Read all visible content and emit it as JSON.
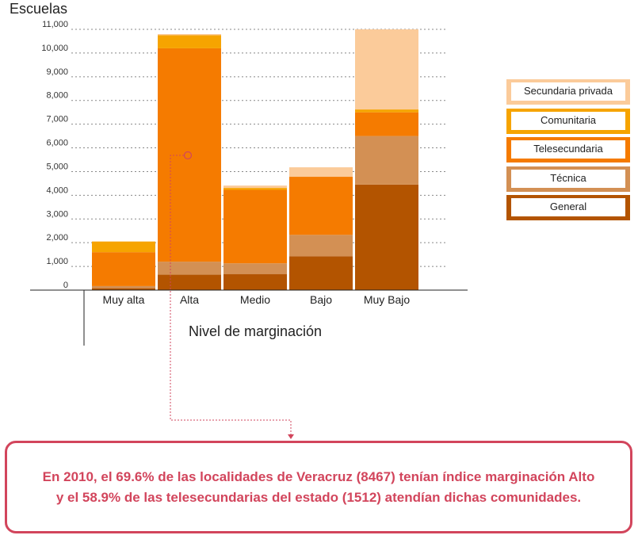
{
  "chart_data": {
    "type": "bar",
    "stacked": true,
    "ylabel": "Escuelas",
    "xlabel": "Nivel de marginación",
    "categories": [
      "Muy alta",
      "Alta",
      "Medio",
      "Bajo",
      "Muy Bajo"
    ],
    "ylim": [
      0,
      11000
    ],
    "yticks": [
      0,
      1000,
      2000,
      3000,
      4000,
      5000,
      6000,
      7000,
      8000,
      9000,
      10000,
      11000
    ],
    "ytick_labels": [
      "0",
      "1,000",
      "2,000",
      "3,000",
      "4,000",
      "5,000",
      "6,000",
      "7,000",
      "8,000",
      "9,000",
      "10,000",
      "11,000"
    ],
    "grid": "horizontal dotted",
    "legend_position": "right",
    "series": [
      {
        "name": "General",
        "color": "#b35400",
        "values": [
          80,
          650,
          680,
          1430,
          4450
        ]
      },
      {
        "name": "Técnica",
        "color": "#d39054",
        "values": [
          90,
          550,
          450,
          900,
          2050
        ]
      },
      {
        "name": "Telesecundaria",
        "color": "#f57b00",
        "values": [
          1430,
          9000,
          3100,
          2450,
          1000
        ]
      },
      {
        "name": "Comunitaria",
        "color": "#f6a400",
        "values": [
          450,
          550,
          80,
          0,
          120
        ]
      },
      {
        "name": "Secundaria privada",
        "color": "#fbcb9a",
        "values": [
          0,
          50,
          100,
          400,
          3380
        ]
      }
    ],
    "legend_order": [
      "Secundaria privada",
      "Comunitaria",
      "Telesecundaria",
      "Técnica",
      "General"
    ]
  },
  "callout": {
    "line1": "En 2010, el 69.6% de las localidades de Veracruz (8467) tenían índice marginación Alto",
    "line2": "y el 58.9% de las telesecundarias del estado (1512) atendían dichas comunidades.",
    "color": "#d2455c"
  }
}
